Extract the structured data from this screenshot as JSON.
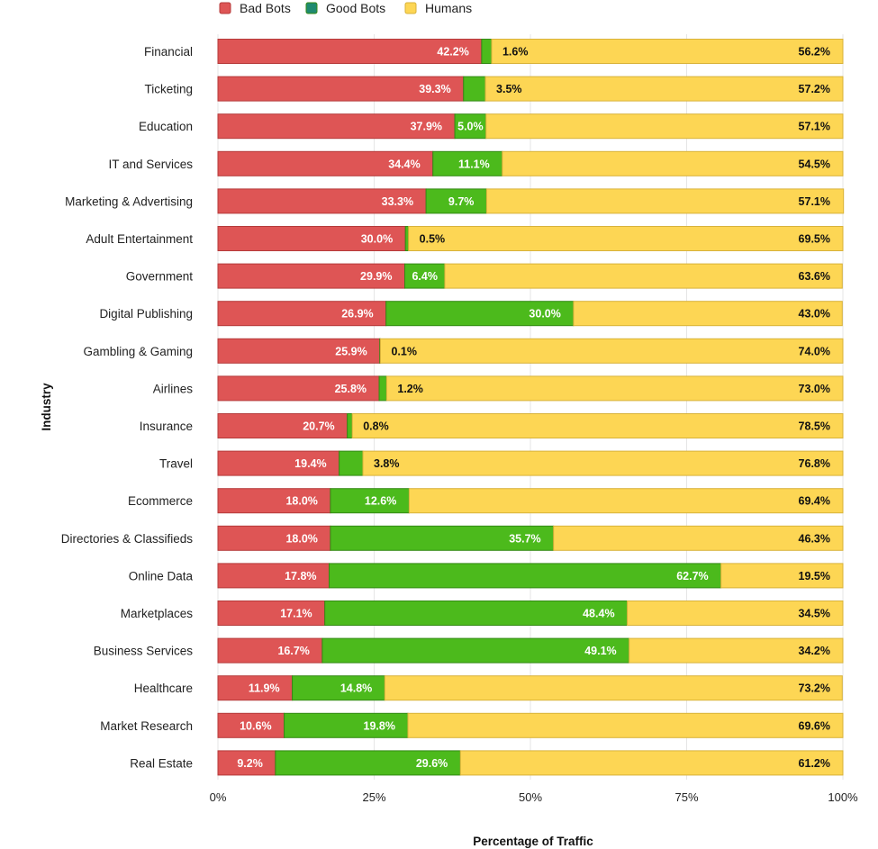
{
  "chart_data": {
    "type": "bar",
    "orientation": "horizontal",
    "stacked": true,
    "title": "",
    "xlabel": "Percentage of Traffic",
    "ylabel": "Industry",
    "xlim": [
      0,
      100
    ],
    "xticks": [
      "0%",
      "25%",
      "50%",
      "75%",
      "100%"
    ],
    "legend_position": "top",
    "grid": true,
    "categories": [
      "Financial",
      "Ticketing",
      "Education",
      "IT and Services",
      "Marketing & Advertising",
      "Adult Entertainment",
      "Government",
      "Digital Publishing",
      "Gambling & Gaming",
      "Airlines",
      "Insurance",
      "Travel",
      "Ecommerce",
      "Directories & Classifieds",
      "Online Data",
      "Marketplaces",
      "Business Services",
      "Healthcare",
      "Market Research",
      "Real Estate"
    ],
    "series": [
      {
        "name": "Bad Bots",
        "color": "#de5555",
        "border": "#b53a3a",
        "values": [
          42.2,
          39.3,
          37.9,
          34.4,
          33.3,
          30.0,
          29.9,
          26.9,
          25.9,
          25.8,
          20.7,
          19.4,
          18.0,
          18.0,
          17.8,
          17.1,
          16.7,
          11.9,
          10.6,
          9.2
        ],
        "labels": [
          "42.2%",
          "39.3%",
          "37.9%",
          "34.4%",
          "33.3%",
          "30.0%",
          "29.9%",
          "26.9%",
          "25.9%",
          "25.8%",
          "20.7%",
          "19.4%",
          "18.0%",
          "18.0%",
          "17.8%",
          "17.1%",
          "16.7%",
          "11.9%",
          "10.6%",
          "9.2%"
        ]
      },
      {
        "name": "Good Bots",
        "color": "#4cba1c",
        "border": "#338a14",
        "legend_color": "#1f8a70",
        "values": [
          1.6,
          3.5,
          5.0,
          11.1,
          9.7,
          0.5,
          6.4,
          30.0,
          0.1,
          1.2,
          0.8,
          3.8,
          12.6,
          35.7,
          62.7,
          48.4,
          49.1,
          14.8,
          19.8,
          29.6
        ],
        "labels": [
          "1.6%",
          "3.5%",
          "5.0%",
          "11.1%",
          "9.7%",
          "0.5%",
          "6.4%",
          "30.0%",
          "0.1%",
          "1.2%",
          "0.8%",
          "3.8%",
          "12.6%",
          "35.7%",
          "62.7%",
          "48.4%",
          "49.1%",
          "14.8%",
          "19.8%",
          "29.6%"
        ]
      },
      {
        "name": "Humans",
        "color": "#fdd654",
        "border": "#d8b23a",
        "values": [
          56.2,
          57.2,
          57.1,
          54.5,
          57.1,
          69.5,
          63.6,
          43.0,
          74.0,
          73.0,
          78.5,
          76.8,
          69.4,
          46.3,
          19.5,
          34.5,
          34.2,
          73.2,
          69.6,
          61.2
        ],
        "labels": [
          "56.2%",
          "57.2%",
          "57.1%",
          "54.5%",
          "57.1%",
          "69.5%",
          "63.6%",
          "43.0%",
          "74.0%",
          "73.0%",
          "78.5%",
          "76.8%",
          "69.4%",
          "46.3%",
          "19.5%",
          "34.5%",
          "34.2%",
          "73.2%",
          "69.6%",
          "61.2%"
        ]
      }
    ]
  }
}
